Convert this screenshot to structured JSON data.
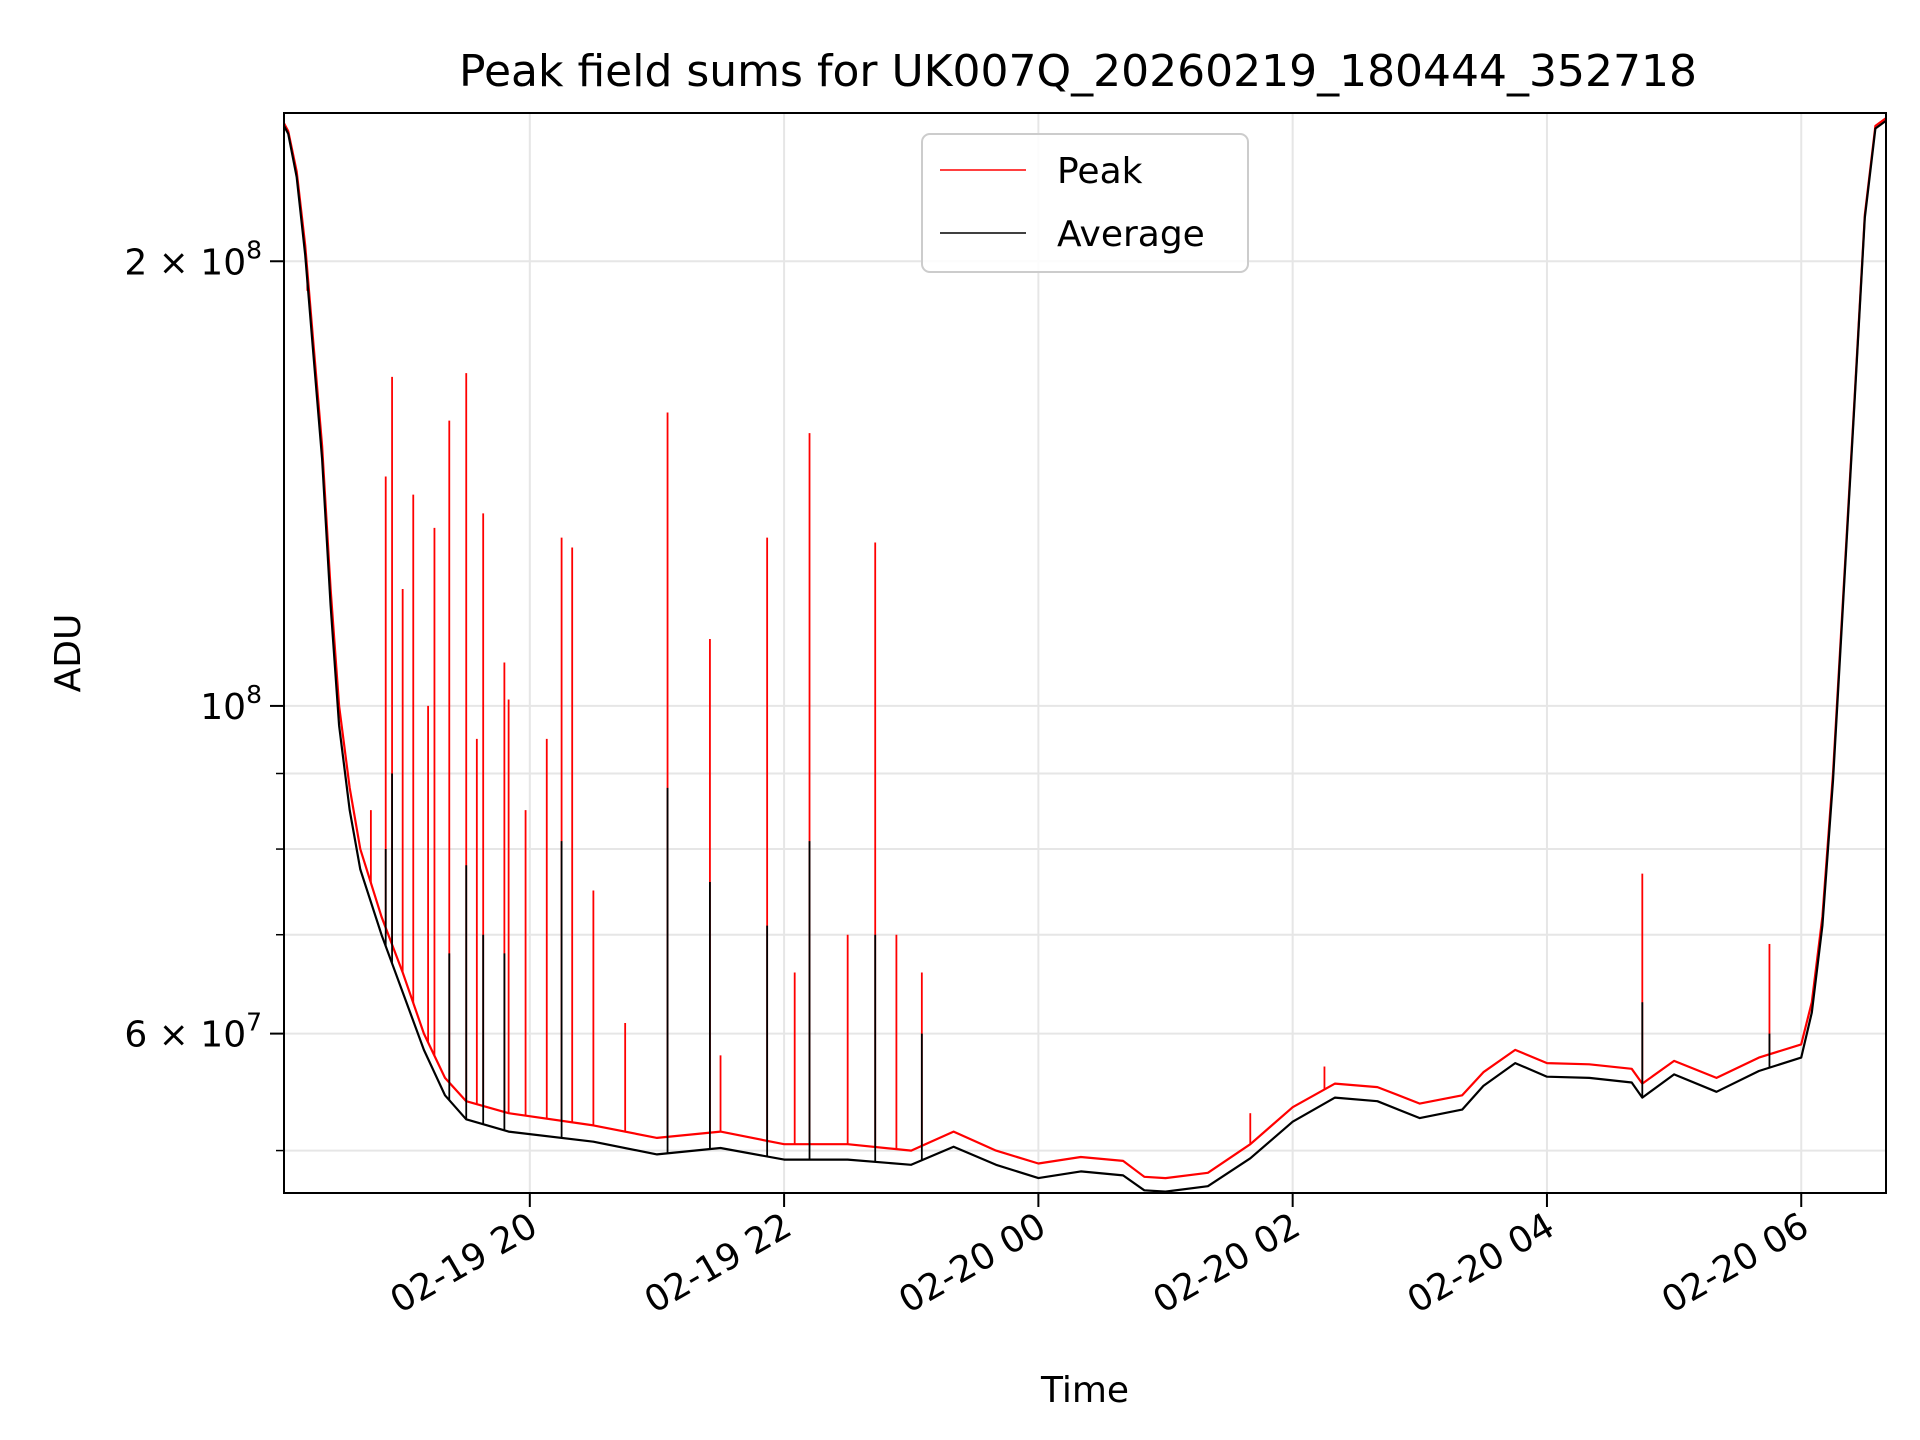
{
  "chart_data": {
    "type": "line",
    "title": "Peak field sums for UK007Q_20260219_180444_352718",
    "xlabel": "Time",
    "ylabel": "ADU",
    "yscale": "log",
    "x_range": [
      "2026-02-19 18:04",
      "2026-02-20 06:40"
    ],
    "ylim": [
      46800000,
      252000000
    ],
    "x_ticks": [
      {
        "value": "2026-02-19 20:00",
        "label": "02-19 20"
      },
      {
        "value": "2026-02-19 22:00",
        "label": "02-19 22"
      },
      {
        "value": "2026-02-20 00:00",
        "label": "02-20 00"
      },
      {
        "value": "2026-02-20 02:00",
        "label": "02-20 02"
      },
      {
        "value": "2026-02-20 04:00",
        "label": "02-20 04"
      },
      {
        "value": "2026-02-20 06:00",
        "label": "02-20 06"
      }
    ],
    "y_ticks_major": [
      {
        "value": 200000000,
        "base": "2 × 10",
        "exp": "8"
      },
      {
        "value": 100000000,
        "base": "10",
        "exp": "8"
      },
      {
        "value": 60000000,
        "base": "6 × 10",
        "exp": "7"
      }
    ],
    "y_minor_gridlines": [
      50000000,
      70000000,
      80000000,
      90000000
    ],
    "grid": true,
    "legend_position": "top-center",
    "series": [
      {
        "name": "Peak",
        "color": "#ff0000",
        "points": [
          [
            "2026-02-19 18:04",
            248000000
          ],
          [
            "2026-02-19 18:06",
            245000000
          ],
          [
            "2026-02-19 18:10",
            230000000
          ],
          [
            "2026-02-19 18:14",
            205000000
          ],
          [
            "2026-02-19 18:18",
            175000000
          ],
          [
            "2026-02-19 18:22",
            150000000
          ],
          [
            "2026-02-19 18:26",
            120000000
          ],
          [
            "2026-02-19 18:30",
            100000000
          ],
          [
            "2026-02-19 18:35",
            88000000
          ],
          [
            "2026-02-19 18:40",
            80000000
          ],
          [
            "2026-02-19 18:50",
            72000000
          ],
          [
            "2026-02-19 19:00",
            66000000
          ],
          [
            "2026-02-19 19:10",
            60000000
          ],
          [
            "2026-02-19 19:20",
            56000000
          ],
          [
            "2026-02-19 19:30",
            54000000
          ],
          [
            "2026-02-19 19:50",
            53000000
          ],
          [
            "2026-02-19 20:30",
            52000000
          ],
          [
            "2026-02-19 21:00",
            51000000
          ],
          [
            "2026-02-19 21:30",
            51500000
          ],
          [
            "2026-02-19 22:00",
            50500000
          ],
          [
            "2026-02-19 22:30",
            50500000
          ],
          [
            "2026-02-19 23:00",
            50000000
          ],
          [
            "2026-02-19 23:20",
            51500000
          ],
          [
            "2026-02-19 23:40",
            50000000
          ],
          [
            "2026-02-20 00:00",
            49000000
          ],
          [
            "2026-02-20 00:20",
            49500000
          ],
          [
            "2026-02-20 00:40",
            49200000
          ],
          [
            "2026-02-20 00:50",
            48000000
          ],
          [
            "2026-02-20 01:00",
            47900000
          ],
          [
            "2026-02-20 01:20",
            48300000
          ],
          [
            "2026-02-20 01:40",
            50500000
          ],
          [
            "2026-02-20 02:00",
            53500000
          ],
          [
            "2026-02-20 02:20",
            55500000
          ],
          [
            "2026-02-20 02:40",
            55200000
          ],
          [
            "2026-02-20 03:00",
            53800000
          ],
          [
            "2026-02-20 03:20",
            54500000
          ],
          [
            "2026-02-20 03:30",
            56500000
          ],
          [
            "2026-02-20 03:45",
            58500000
          ],
          [
            "2026-02-20 04:00",
            57300000
          ],
          [
            "2026-02-20 04:20",
            57200000
          ],
          [
            "2026-02-20 04:40",
            56800000
          ],
          [
            "2026-02-20 04:45",
            55500000
          ],
          [
            "2026-02-20 05:00",
            57500000
          ],
          [
            "2026-02-20 05:20",
            56000000
          ],
          [
            "2026-02-20 05:40",
            57800000
          ],
          [
            "2026-02-20 06:00",
            59000000
          ],
          [
            "2026-02-20 06:05",
            63000000
          ],
          [
            "2026-02-20 06:10",
            72000000
          ],
          [
            "2026-02-20 06:15",
            90000000
          ],
          [
            "2026-02-20 06:20",
            120000000
          ],
          [
            "2026-02-20 06:25",
            160000000
          ],
          [
            "2026-02-20 06:30",
            215000000
          ],
          [
            "2026-02-20 06:35",
            247000000
          ],
          [
            "2026-02-20 06:40",
            250000000
          ]
        ],
        "spikes": [
          [
            "2026-02-19 18:15",
            191000000
          ],
          [
            "2026-02-19 18:25",
            125000000
          ],
          [
            "2026-02-19 18:45",
            85000000
          ],
          [
            "2026-02-19 18:52",
            143000000
          ],
          [
            "2026-02-19 18:55",
            167000000
          ],
          [
            "2026-02-19 19:00",
            120000000
          ],
          [
            "2026-02-19 19:05",
            139000000
          ],
          [
            "2026-02-19 19:12",
            100000000
          ],
          [
            "2026-02-19 19:15",
            132000000
          ],
          [
            "2026-02-19 19:22",
            156000000
          ],
          [
            "2026-02-19 19:30",
            168000000
          ],
          [
            "2026-02-19 19:35",
            95000000
          ],
          [
            "2026-02-19 19:38",
            135000000
          ],
          [
            "2026-02-19 19:48",
            107000000
          ],
          [
            "2026-02-19 19:50",
            101000000
          ],
          [
            "2026-02-19 19:58",
            85000000
          ],
          [
            "2026-02-19 20:08",
            95000000
          ],
          [
            "2026-02-19 20:15",
            130000000
          ],
          [
            "2026-02-19 20:20",
            128000000
          ],
          [
            "2026-02-19 20:30",
            75000000
          ],
          [
            "2026-02-19 20:45",
            61000000
          ],
          [
            "2026-02-19 21:05",
            158000000
          ],
          [
            "2026-02-19 21:25",
            111000000
          ],
          [
            "2026-02-19 21:30",
            58000000
          ],
          [
            "2026-02-19 21:52",
            130000000
          ],
          [
            "2026-02-19 22:05",
            66000000
          ],
          [
            "2026-02-19 22:12",
            153000000
          ],
          [
            "2026-02-19 22:30",
            70000000
          ],
          [
            "2026-02-19 22:43",
            129000000
          ],
          [
            "2026-02-19 22:53",
            70000000
          ],
          [
            "2026-02-19 23:05",
            66000000
          ],
          [
            "2026-02-20 01:40",
            53000000
          ],
          [
            "2026-02-20 02:15",
            57000000
          ],
          [
            "2026-02-20 04:45",
            77000000
          ],
          [
            "2026-02-20 05:45",
            69000000
          ]
        ]
      },
      {
        "name": "Average",
        "color": "#000000",
        "points": [
          [
            "2026-02-19 18:04",
            247000000
          ],
          [
            "2026-02-19 18:06",
            244000000
          ],
          [
            "2026-02-19 18:10",
            228000000
          ],
          [
            "2026-02-19 18:14",
            202000000
          ],
          [
            "2026-02-19 18:18",
            172000000
          ],
          [
            "2026-02-19 18:22",
            147000000
          ],
          [
            "2026-02-19 18:26",
            117000000
          ],
          [
            "2026-02-19 18:30",
            97000000
          ],
          [
            "2026-02-19 18:35",
            85000000
          ],
          [
            "2026-02-19 18:40",
            77500000
          ],
          [
            "2026-02-19 18:50",
            70000000
          ],
          [
            "2026-02-19 19:00",
            64000000
          ],
          [
            "2026-02-19 19:10",
            58500000
          ],
          [
            "2026-02-19 19:20",
            54500000
          ],
          [
            "2026-02-19 19:30",
            52500000
          ],
          [
            "2026-02-19 19:50",
            51500000
          ],
          [
            "2026-02-19 20:30",
            50700000
          ],
          [
            "2026-02-19 21:00",
            49700000
          ],
          [
            "2026-02-19 21:30",
            50200000
          ],
          [
            "2026-02-19 22:00",
            49300000
          ],
          [
            "2026-02-19 22:30",
            49300000
          ],
          [
            "2026-02-19 23:00",
            48900000
          ],
          [
            "2026-02-19 23:20",
            50300000
          ],
          [
            "2026-02-19 23:40",
            48900000
          ],
          [
            "2026-02-20 00:00",
            47900000
          ],
          [
            "2026-02-20 00:20",
            48400000
          ],
          [
            "2026-02-20 00:40",
            48100000
          ],
          [
            "2026-02-20 00:50",
            47000000
          ],
          [
            "2026-02-20 01:00",
            46900000
          ],
          [
            "2026-02-20 01:20",
            47300000
          ],
          [
            "2026-02-20 01:40",
            49400000
          ],
          [
            "2026-02-20 02:00",
            52300000
          ],
          [
            "2026-02-20 02:20",
            54300000
          ],
          [
            "2026-02-20 02:40",
            54000000
          ],
          [
            "2026-02-20 03:00",
            52600000
          ],
          [
            "2026-02-20 03:20",
            53300000
          ],
          [
            "2026-02-20 03:30",
            55300000
          ],
          [
            "2026-02-20 03:45",
            57300000
          ],
          [
            "2026-02-20 04:00",
            56100000
          ],
          [
            "2026-02-20 04:20",
            56000000
          ],
          [
            "2026-02-20 04:40",
            55600000
          ],
          [
            "2026-02-20 04:45",
            54300000
          ],
          [
            "2026-02-20 05:00",
            56300000
          ],
          [
            "2026-02-20 05:20",
            54800000
          ],
          [
            "2026-02-20 05:40",
            56600000
          ],
          [
            "2026-02-20 06:00",
            57800000
          ],
          [
            "2026-02-20 06:05",
            62000000
          ],
          [
            "2026-02-20 06:10",
            71000000
          ],
          [
            "2026-02-20 06:15",
            89000000
          ],
          [
            "2026-02-20 06:20",
            119000000
          ],
          [
            "2026-02-20 06:25",
            159000000
          ],
          [
            "2026-02-20 06:30",
            214000000
          ],
          [
            "2026-02-20 06:35",
            246000000
          ],
          [
            "2026-02-20 06:40",
            249000000
          ]
        ],
        "spikes": [
          [
            "2026-02-19 18:52",
            80000000
          ],
          [
            "2026-02-19 18:55",
            90000000
          ],
          [
            "2026-02-19 19:22",
            68000000
          ],
          [
            "2026-02-19 19:30",
            78000000
          ],
          [
            "2026-02-19 19:38",
            70000000
          ],
          [
            "2026-02-19 19:48",
            68000000
          ],
          [
            "2026-02-19 20:15",
            81000000
          ],
          [
            "2026-02-19 21:05",
            88000000
          ],
          [
            "2026-02-19 21:25",
            76000000
          ],
          [
            "2026-02-19 21:52",
            71000000
          ],
          [
            "2026-02-19 22:12",
            81000000
          ],
          [
            "2026-02-19 22:43",
            70000000
          ],
          [
            "2026-02-19 23:05",
            60000000
          ],
          [
            "2026-02-20 04:45",
            63000000
          ],
          [
            "2026-02-20 05:45",
            60000000
          ]
        ]
      }
    ]
  }
}
